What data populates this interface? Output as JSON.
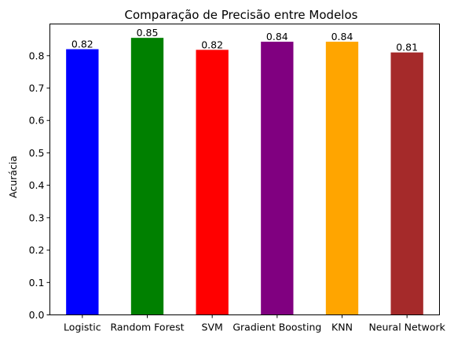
{
  "chart_data": {
    "type": "bar",
    "title": "Comparação de Precisão entre Modelos",
    "xlabel": "",
    "ylabel": "Acurácia",
    "categories": [
      "Logistic",
      "Random Forest",
      "SVM",
      "Gradient Boosting",
      "KNN",
      "Neural Network"
    ],
    "values": [
      0.82,
      0.855,
      0.818,
      0.843,
      0.843,
      0.81
    ],
    "data_labels": [
      "0.82",
      "0.85",
      "0.82",
      "0.84",
      "0.84",
      "0.81"
    ],
    "colors": [
      "#0000ff",
      "#008000",
      "#ff0000",
      "#800080",
      "#ffa500",
      "#a52a2a"
    ],
    "ylim": [
      0,
      0.8978
    ],
    "yticks": [
      0.0,
      0.1,
      0.2,
      0.3,
      0.4,
      0.5,
      0.6,
      0.7,
      0.8
    ],
    "ytick_labels": [
      "0.0",
      "0.1",
      "0.2",
      "0.3",
      "0.4",
      "0.5",
      "0.6",
      "0.7",
      "0.8"
    ],
    "grid": false,
    "legend": "none"
  }
}
